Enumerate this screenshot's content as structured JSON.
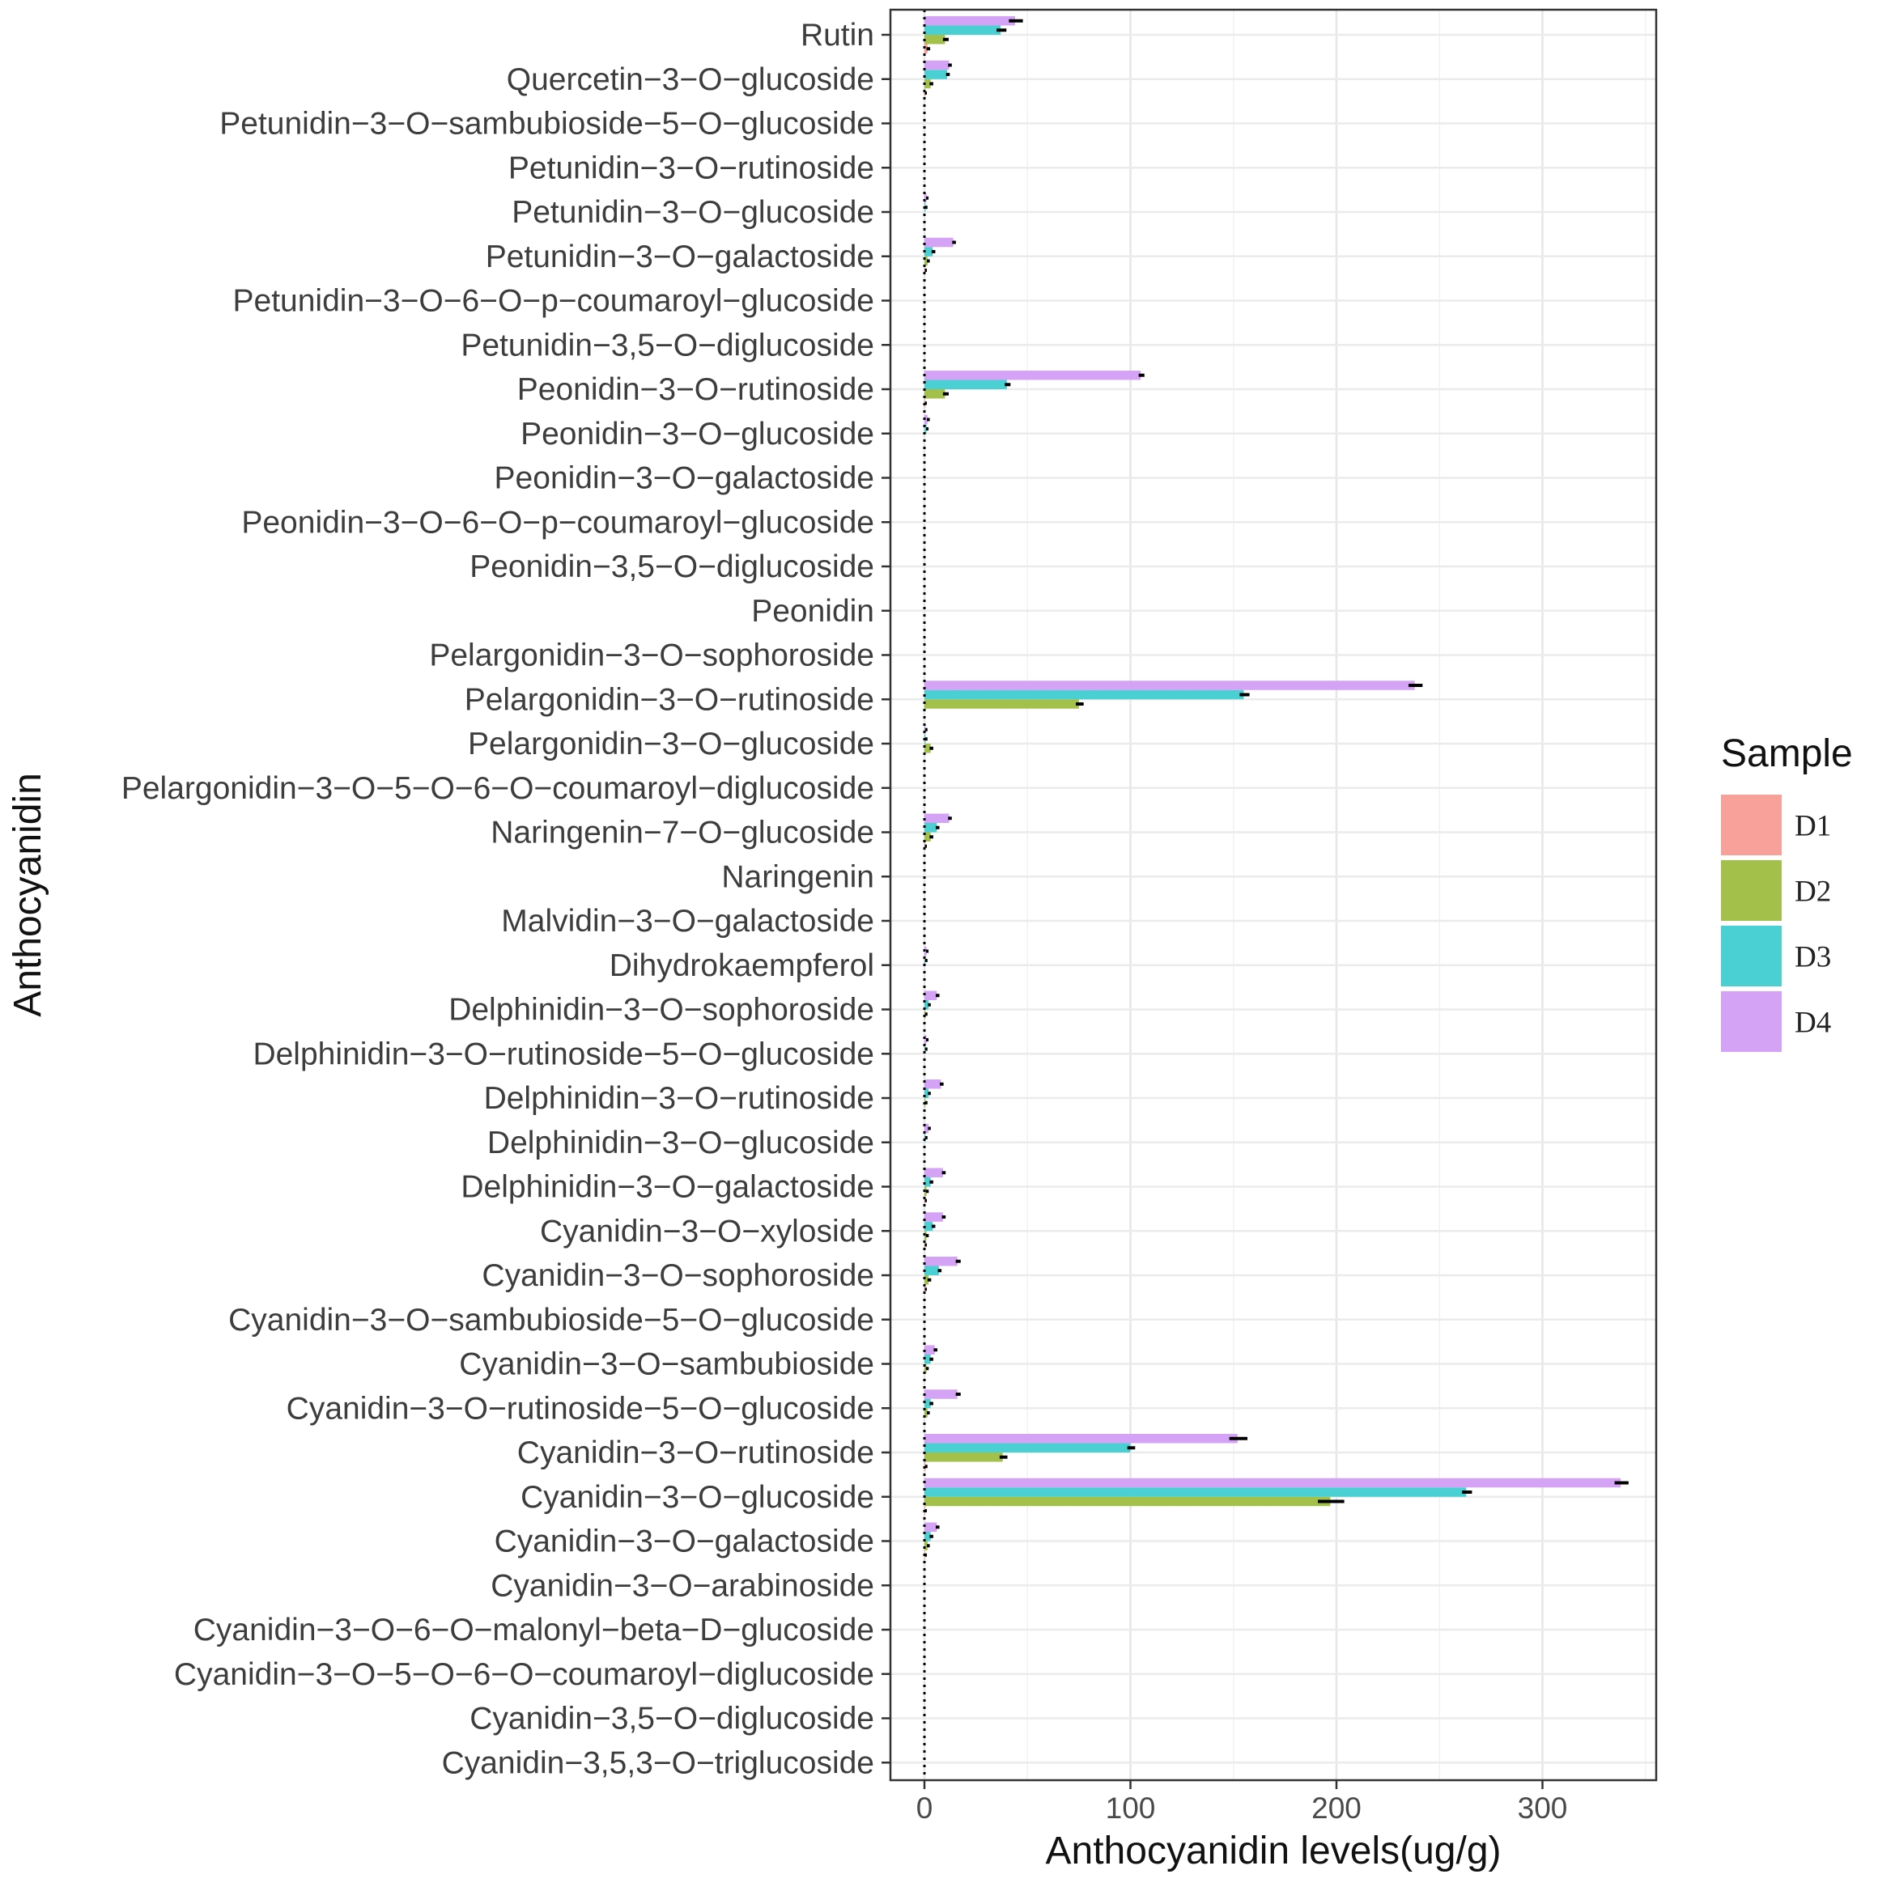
{
  "chart_data": {
    "type": "bar",
    "orientation": "horizontal",
    "xlabel": "Anthocyanidin levels(ug/g)",
    "ylabel": "Anthocyanidin",
    "xlim": [
      -16,
      356
    ],
    "xticks": [
      0,
      100,
      200,
      300
    ],
    "grid": true,
    "legend": {
      "title": "Sample",
      "position": "right"
    },
    "categories": [
      "Rutin",
      "Quercetin−3−O−glucoside",
      "Petunidin−3−O−sambubioside−5−O−glucoside",
      "Petunidin−3−O−rutinoside",
      "Petunidin−3−O−glucoside",
      "Petunidin−3−O−galactoside",
      "Petunidin−3−O−6−O−p−coumaroyl−glucoside",
      "Petunidin−3,5−O−diglucoside",
      "Peonidin−3−O−rutinoside",
      "Peonidin−3−O−glucoside",
      "Peonidin−3−O−galactoside",
      "Peonidin−3−O−6−O−p−coumaroyl−glucoside",
      "Peonidin−3,5−O−diglucoside",
      "Peonidin",
      "Pelargonidin−3−O−sophoroside",
      "Pelargonidin−3−O−rutinoside",
      "Pelargonidin−3−O−glucoside",
      "Pelargonidin−3−O−5−O−6−O−coumaroyl−diglucoside",
      "Naringenin−7−O−glucoside",
      "Naringenin",
      "Malvidin−3−O−galactoside",
      "Dihydrokaempferol",
      "Delphinidin−3−O−sophoroside",
      "Delphinidin−3−O−rutinoside−5−O−glucoside",
      "Delphinidin−3−O−rutinoside",
      "Delphinidin−3−O−glucoside",
      "Delphinidin−3−O−galactoside",
      "Cyanidin−3−O−xyloside",
      "Cyanidin−3−O−sophoroside",
      "Cyanidin−3−O−sambubioside−5−O−glucoside",
      "Cyanidin−3−O−sambubioside",
      "Cyanidin−3−O−rutinoside−5−O−glucoside",
      "Cyanidin−3−O−rutinoside",
      "Cyanidin−3−O−glucoside",
      "Cyanidin−3−O−galactoside",
      "Cyanidin−3−O−arabinoside",
      "Cyanidin−3−O−6−O−malonyl−beta−D−glucoside",
      "Cyanidin−3−O−5−O−6−O−coumaroyl−diglucoside",
      "Cyanidin−3,5−O−diglucoside",
      "Cyanidin−3,5,3−O−triglucoside"
    ],
    "series": [
      {
        "name": "D1",
        "color": "#F8A19A",
        "values": [
          1.5,
          0.3,
          0,
          0,
          0,
          0.3,
          0,
          0,
          0.3,
          0,
          0,
          0,
          0,
          0,
          0,
          0,
          0,
          0,
          0.3,
          0,
          0,
          0,
          0,
          0,
          0,
          0,
          0.3,
          0.3,
          0.3,
          0,
          0,
          0,
          0.5,
          0.3,
          0.3,
          0,
          0,
          0,
          0,
          0
        ],
        "errors": [
          0.5,
          0.1,
          0,
          0,
          0,
          0.1,
          0,
          0,
          0.1,
          0,
          0,
          0,
          0,
          0,
          0,
          0,
          0,
          0,
          0.1,
          0,
          0,
          0,
          0,
          0,
          0,
          0,
          0.1,
          0.1,
          0.1,
          0,
          0,
          0,
          0.2,
          0.1,
          0.1,
          0,
          0,
          0,
          0,
          0
        ]
      },
      {
        "name": "D2",
        "color": "#A3C14A",
        "values": [
          10,
          3,
          0,
          0,
          0,
          1.5,
          0,
          0,
          10,
          0,
          0,
          0,
          0,
          0,
          0,
          75,
          3,
          0,
          3,
          0,
          0,
          0,
          0.5,
          0,
          0.5,
          0,
          1,
          1,
          2,
          0,
          1,
          1.5,
          38,
          197,
          1.5,
          0,
          0,
          0,
          0,
          0
        ],
        "errors": [
          1,
          0.5,
          0,
          0,
          0,
          0.3,
          0,
          0,
          1,
          0,
          0,
          0,
          0,
          0,
          0,
          1.5,
          0.5,
          0,
          0.5,
          0,
          0,
          0,
          0.2,
          0,
          0.2,
          0,
          0.3,
          0.3,
          0.5,
          0,
          0.3,
          0.3,
          1.5,
          6,
          0.3,
          0,
          0,
          0,
          0,
          0
        ]
      },
      {
        "name": "D3",
        "color": "#4ACFD2",
        "values": [
          37,
          11,
          0,
          0,
          0.5,
          4,
          0,
          0,
          40,
          1,
          0,
          0,
          0,
          0,
          0,
          155,
          0.5,
          0,
          6,
          0,
          0,
          0.5,
          2,
          0.5,
          2,
          0.5,
          3,
          4,
          7,
          0,
          3,
          3,
          100,
          263,
          3,
          0,
          0,
          0,
          0,
          0
        ],
        "errors": [
          2,
          0.5,
          0,
          0,
          0.2,
          0.5,
          0,
          0,
          1,
          0.2,
          0,
          0,
          0,
          0,
          0,
          2,
          0.2,
          0,
          0.5,
          0,
          0,
          0.2,
          0.3,
          0.2,
          0.3,
          0.2,
          0.5,
          0.5,
          0.5,
          0,
          0.5,
          0.5,
          1.5,
          2,
          0.5,
          0,
          0,
          0,
          0,
          0
        ]
      },
      {
        "name": "D4",
        "color": "#D5A3F5",
        "values": [
          44,
          12,
          0,
          0,
          1,
          14,
          0,
          0,
          105,
          1.5,
          0,
          0,
          0,
          0,
          0,
          238,
          0.5,
          0,
          12,
          0,
          0,
          1,
          6,
          1,
          8,
          2,
          9,
          9,
          16,
          0,
          5,
          16,
          152,
          338,
          6,
          0,
          0,
          0,
          0,
          0
        ],
        "errors": [
          3,
          0.5,
          0,
          0,
          0.2,
          0.5,
          0,
          0,
          1,
          0.3,
          0,
          0,
          0,
          0,
          0,
          3,
          0.2,
          0,
          0.5,
          0,
          0,
          0.2,
          0.5,
          0.2,
          0.5,
          0.3,
          0.5,
          0.5,
          0.8,
          0,
          0.5,
          0.8,
          4,
          3,
          0.5,
          0,
          0,
          0,
          0,
          0
        ]
      }
    ]
  }
}
